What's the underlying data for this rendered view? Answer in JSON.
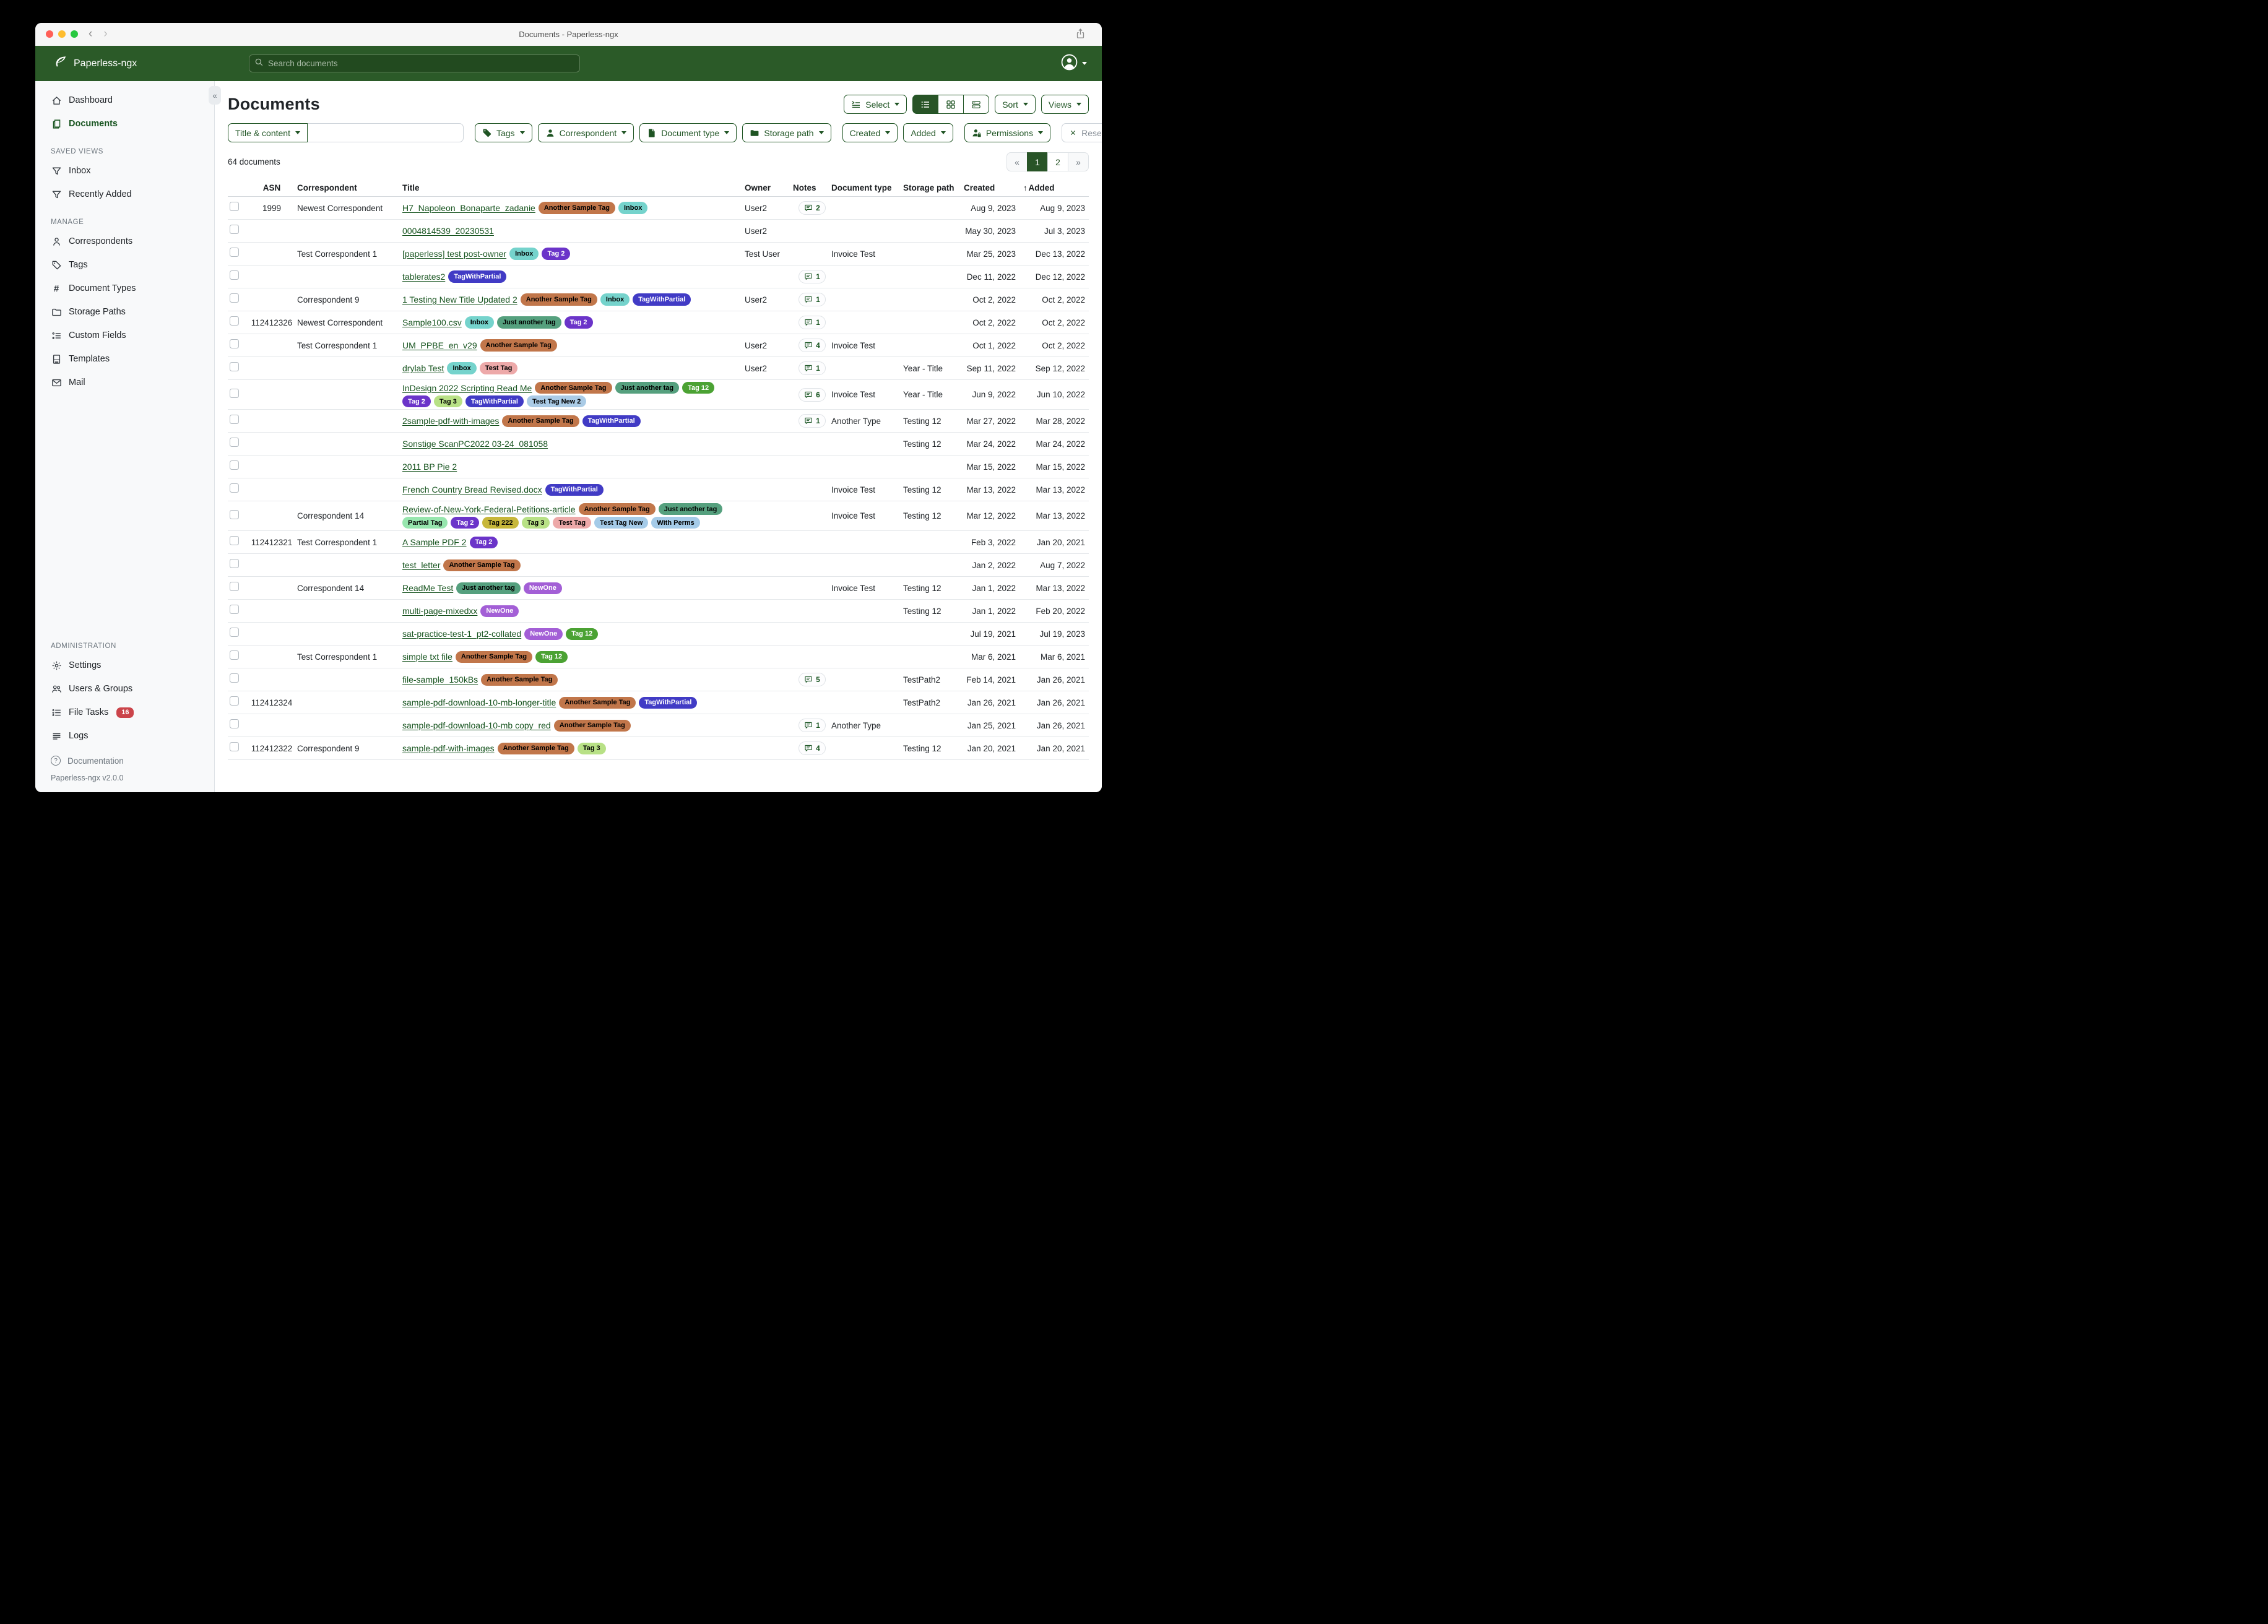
{
  "window": {
    "title": "Documents - Paperless-ngx"
  },
  "navbar": {
    "brand": "Paperless-ngx",
    "search_placeholder": "Search documents"
  },
  "sidebar": {
    "primary": [
      {
        "label": "Dashboard",
        "icon": "home-icon"
      },
      {
        "label": "Documents",
        "icon": "documents-icon",
        "active": true
      }
    ],
    "sections": [
      {
        "title": "SAVED VIEWS",
        "items": [
          {
            "label": "Inbox",
            "icon": "funnel-icon"
          },
          {
            "label": "Recently Added",
            "icon": "funnel-icon"
          }
        ]
      },
      {
        "title": "MANAGE",
        "items": [
          {
            "label": "Correspondents",
            "icon": "person-icon"
          },
          {
            "label": "Tags",
            "icon": "tag-icon"
          },
          {
            "label": "Document Types",
            "icon": "hash-icon"
          },
          {
            "label": "Storage Paths",
            "icon": "folder-icon"
          },
          {
            "label": "Custom Fields",
            "icon": "fields-icon"
          },
          {
            "label": "Templates",
            "icon": "template-icon"
          },
          {
            "label": "Mail",
            "icon": "mail-icon"
          }
        ]
      },
      {
        "title": "ADMINISTRATION",
        "items": [
          {
            "label": "Settings",
            "icon": "gear-icon"
          },
          {
            "label": "Users & Groups",
            "icon": "users-icon"
          },
          {
            "label": "File Tasks",
            "icon": "tasks-icon",
            "badge": "16"
          },
          {
            "label": "Logs",
            "icon": "logs-icon"
          }
        ]
      }
    ],
    "footer": {
      "documentation": "Documentation",
      "version": "Paperless-ngx v2.0.0"
    }
  },
  "content": {
    "heading": "Documents",
    "toolbar": {
      "select": "Select",
      "sort": "Sort",
      "views": "Views"
    },
    "filters": {
      "title_content": "Title & content",
      "tags": "Tags",
      "correspondent": "Correspondent",
      "document_type": "Document type",
      "storage_path": "Storage path",
      "created": "Created",
      "added": "Added",
      "permissions": "Permissions",
      "reset": "Reset filters"
    },
    "count_text": "64 documents",
    "pagination": [
      {
        "label": "«",
        "kind": "prev"
      },
      {
        "label": "1",
        "kind": "num",
        "active": true
      },
      {
        "label": "2",
        "kind": "num"
      },
      {
        "label": "»",
        "kind": "next"
      }
    ]
  },
  "table": {
    "headers": {
      "asn": "ASN",
      "correspondent": "Correspondent",
      "title": "Title",
      "owner": "Owner",
      "notes": "Notes",
      "document_type": "Document type",
      "storage_path": "Storage path",
      "created": "Created",
      "added": "Added",
      "sort_arrow": "↑"
    },
    "tag_colors": {
      "Another Sample Tag": {
        "bg": "#c1764a",
        "fg": "#000000"
      },
      "Inbox": {
        "bg": "#75d3cc",
        "fg": "#000000"
      },
      "Tag 2": {
        "bg": "#6b34c9",
        "fg": "#ffffff"
      },
      "TagWithPartial": {
        "bg": "#413bc5",
        "fg": "#ffffff"
      },
      "Just another tag": {
        "bg": "#55a07e",
        "fg": "#000000"
      },
      "Tag 12": {
        "bg": "#4ba233",
        "fg": "#ffffff"
      },
      "Tag 3": {
        "bg": "#b8e186",
        "fg": "#000000"
      },
      "Test Tag": {
        "bg": "#eda9a9",
        "fg": "#000000"
      },
      "Test Tag New 2": {
        "bg": "#aacbe6",
        "fg": "#000000"
      },
      "Partial Tag": {
        "bg": "#97e6ae",
        "fg": "#000000"
      },
      "Tag 222": {
        "bg": "#c7b73a",
        "fg": "#000000"
      },
      "Test Tag New": {
        "bg": "#a5cbe8",
        "fg": "#000000"
      },
      "With Perms": {
        "bg": "#a5cbe8",
        "fg": "#000000"
      },
      "NewOne": {
        "bg": "#a35fd6",
        "fg": "#ffffff"
      }
    },
    "rows": [
      {
        "asn": "1999",
        "correspondent": "Newest Correspondent",
        "title": "H7_Napoleon_Bonaparte_zadanie",
        "tags": [
          "Another Sample Tag",
          "Inbox"
        ],
        "owner": "User2",
        "notes": 2,
        "document_type": "",
        "storage_path": "",
        "created": "Aug 9, 2023",
        "added": "Aug 9, 2023"
      },
      {
        "asn": "",
        "correspondent": "",
        "title": "0004814539_20230531",
        "tags": [],
        "owner": "User2",
        "notes": 0,
        "document_type": "",
        "storage_path": "",
        "created": "May 30, 2023",
        "added": "Jul 3, 2023"
      },
      {
        "asn": "",
        "correspondent": "Test Correspondent 1",
        "title": "[paperless] test post-owner",
        "tags": [
          "Inbox",
          "Tag 2"
        ],
        "owner": "Test User",
        "notes": 0,
        "document_type": "Invoice Test",
        "storage_path": "",
        "created": "Mar 25, 2023",
        "added": "Dec 13, 2022"
      },
      {
        "asn": "",
        "correspondent": "",
        "title": "tablerates2",
        "tags": [
          "TagWithPartial"
        ],
        "owner": "",
        "notes": 1,
        "document_type": "",
        "storage_path": "",
        "created": "Dec 11, 2022",
        "added": "Dec 12, 2022"
      },
      {
        "asn": "",
        "correspondent": "Correspondent 9",
        "title": "1 Testing New Title Updated 2",
        "tags": [
          "Another Sample Tag",
          "Inbox",
          "TagWithPartial"
        ],
        "owner": "User2",
        "notes": 1,
        "document_type": "",
        "storage_path": "",
        "created": "Oct 2, 2022",
        "added": "Oct 2, 2022"
      },
      {
        "asn": "112412326",
        "correspondent": "Newest Correspondent",
        "title": "Sample100.csv",
        "tags": [
          "Inbox",
          "Just another tag",
          "Tag 2"
        ],
        "owner": "",
        "notes": 1,
        "document_type": "",
        "storage_path": "",
        "created": "Oct 2, 2022",
        "added": "Oct 2, 2022"
      },
      {
        "asn": "",
        "correspondent": "Test Correspondent 1",
        "title": "UM_PPBE_en_v29",
        "tags": [
          "Another Sample Tag"
        ],
        "owner": "User2",
        "notes": 4,
        "document_type": "Invoice Test",
        "storage_path": "",
        "created": "Oct 1, 2022",
        "added": "Oct 2, 2022"
      },
      {
        "asn": "",
        "correspondent": "",
        "title": "drylab Test",
        "tags": [
          "Inbox",
          "Test Tag"
        ],
        "owner": "User2",
        "notes": 1,
        "document_type": "",
        "storage_path": "Year - Title",
        "created": "Sep 11, 2022",
        "added": "Sep 12, 2022"
      },
      {
        "asn": "",
        "correspondent": "",
        "title": "InDesign 2022 Scripting Read Me",
        "tags": [
          "Another Sample Tag",
          "Just another tag",
          "Tag 12",
          "Tag 2",
          "Tag 3",
          "TagWithPartial",
          "Test Tag New 2"
        ],
        "owner": "",
        "notes": 6,
        "document_type": "Invoice Test",
        "storage_path": "Year - Title",
        "created": "Jun 9, 2022",
        "added": "Jun 10, 2022"
      },
      {
        "asn": "",
        "correspondent": "",
        "title": "2sample-pdf-with-images",
        "tags": [
          "Another Sample Tag",
          "TagWithPartial"
        ],
        "owner": "",
        "notes": 1,
        "document_type": "Another Type",
        "storage_path": "Testing 12",
        "created": "Mar 27, 2022",
        "added": "Mar 28, 2022"
      },
      {
        "asn": "",
        "correspondent": "",
        "title": "Sonstige ScanPC2022 03-24_081058",
        "tags": [],
        "owner": "",
        "notes": 0,
        "document_type": "",
        "storage_path": "Testing 12",
        "created": "Mar 24, 2022",
        "added": "Mar 24, 2022"
      },
      {
        "asn": "",
        "correspondent": "",
        "title": "2011 BP Pie 2",
        "tags": [],
        "owner": "",
        "notes": 0,
        "document_type": "",
        "storage_path": "",
        "created": "Mar 15, 2022",
        "added": "Mar 15, 2022"
      },
      {
        "asn": "",
        "correspondent": "",
        "title": "French Country Bread Revised.docx",
        "tags": [
          "TagWithPartial"
        ],
        "owner": "",
        "notes": 0,
        "document_type": "Invoice Test",
        "storage_path": "Testing 12",
        "created": "Mar 13, 2022",
        "added": "Mar 13, 2022"
      },
      {
        "asn": "",
        "correspondent": "Correspondent 14",
        "title": "Review-of-New-York-Federal-Petitions-article",
        "tags": [
          "Another Sample Tag",
          "Just another tag",
          "Partial Tag",
          "Tag 2",
          "Tag 222",
          "Tag 3",
          "Test Tag",
          "Test Tag New",
          "With Perms"
        ],
        "owner": "",
        "notes": 0,
        "document_type": "Invoice Test",
        "storage_path": "Testing 12",
        "created": "Mar 12, 2022",
        "added": "Mar 13, 2022"
      },
      {
        "asn": "112412321",
        "correspondent": "Test Correspondent 1",
        "title": "A Sample PDF 2",
        "tags": [
          "Tag 2"
        ],
        "owner": "",
        "notes": 0,
        "document_type": "",
        "storage_path": "",
        "created": "Feb 3, 2022",
        "added": "Jan 20, 2021"
      },
      {
        "asn": "",
        "correspondent": "",
        "title": "test_letter",
        "tags": [
          "Another Sample Tag"
        ],
        "owner": "",
        "notes": 0,
        "document_type": "",
        "storage_path": "",
        "created": "Jan 2, 2022",
        "added": "Aug 7, 2022"
      },
      {
        "asn": "",
        "correspondent": "Correspondent 14",
        "title": "ReadMe Test",
        "tags": [
          "Just another tag",
          "NewOne"
        ],
        "owner": "",
        "notes": 0,
        "document_type": "Invoice Test",
        "storage_path": "Testing 12",
        "created": "Jan 1, 2022",
        "added": "Mar 13, 2022"
      },
      {
        "asn": "",
        "correspondent": "",
        "title": "multi-page-mixedxx",
        "tags": [
          "NewOne"
        ],
        "owner": "",
        "notes": 0,
        "document_type": "",
        "storage_path": "Testing 12",
        "created": "Jan 1, 2022",
        "added": "Feb 20, 2022"
      },
      {
        "asn": "",
        "correspondent": "",
        "title": "sat-practice-test-1_pt2-collated",
        "tags": [
          "NewOne",
          "Tag 12"
        ],
        "owner": "",
        "notes": 0,
        "document_type": "",
        "storage_path": "",
        "created": "Jul 19, 2021",
        "added": "Jul 19, 2023"
      },
      {
        "asn": "",
        "correspondent": "Test Correspondent 1",
        "title": "simple txt file",
        "tags": [
          "Another Sample Tag",
          "Tag 12"
        ],
        "owner": "",
        "notes": 0,
        "document_type": "",
        "storage_path": "",
        "created": "Mar 6, 2021",
        "added": "Mar 6, 2021"
      },
      {
        "asn": "",
        "correspondent": "",
        "title": "file-sample_150kBs",
        "tags": [
          "Another Sample Tag"
        ],
        "owner": "",
        "notes": 5,
        "document_type": "",
        "storage_path": "TestPath2",
        "created": "Feb 14, 2021",
        "added": "Jan 26, 2021"
      },
      {
        "asn": "112412324",
        "correspondent": "",
        "title": "sample-pdf-download-10-mb-longer-title",
        "tags": [
          "Another Sample Tag",
          "TagWithPartial"
        ],
        "owner": "",
        "notes": 0,
        "document_type": "",
        "storage_path": "TestPath2",
        "created": "Jan 26, 2021",
        "added": "Jan 26, 2021"
      },
      {
        "asn": "",
        "correspondent": "",
        "title": "sample-pdf-download-10-mb copy_red",
        "tags": [
          "Another Sample Tag"
        ],
        "owner": "",
        "notes": 1,
        "document_type": "Another Type",
        "storage_path": "",
        "created": "Jan 25, 2021",
        "added": "Jan 26, 2021"
      },
      {
        "asn": "112412322",
        "correspondent": "Correspondent 9",
        "title": "sample-pdf-with-images",
        "tags": [
          "Another Sample Tag",
          "Tag 3"
        ],
        "owner": "",
        "notes": 4,
        "document_type": "",
        "storage_path": "Testing 12",
        "created": "Jan 20, 2021",
        "added": "Jan 20, 2021"
      }
    ]
  }
}
